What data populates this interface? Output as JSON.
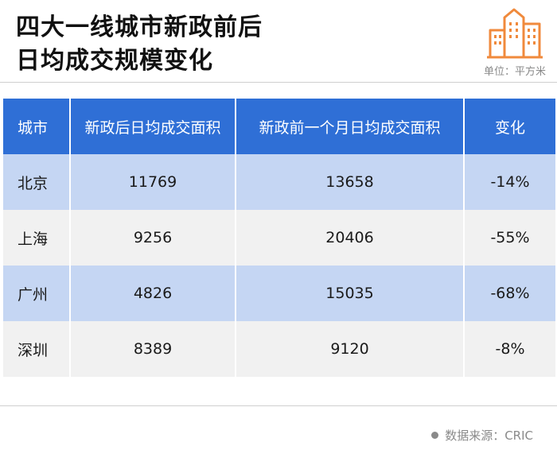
{
  "header": {
    "title_line1": "四大一线城市新政前后",
    "title_line2": "日均成交规模变化",
    "unit": "单位：平方米"
  },
  "table": {
    "columns": [
      "城市",
      "新政后日均成交面积",
      "新政前一个月日均成交面积",
      "变化"
    ],
    "rows": [
      {
        "city": "北京",
        "after": "11769",
        "before": "13658",
        "change": "-14%"
      },
      {
        "city": "上海",
        "after": "9256",
        "before": "20406",
        "change": "-55%"
      },
      {
        "city": "广州",
        "after": "4826",
        "before": "15035",
        "change": "-68%"
      },
      {
        "city": "深圳",
        "after": "8389",
        "before": "9120",
        "change": "-8%"
      }
    ]
  },
  "footer": {
    "source": "数据来源：CRIC"
  },
  "colors": {
    "header_blue": "#2f6fd6",
    "row_blue": "#c5d6f3",
    "row_gray": "#f1f1f1",
    "logo_orange": "#f08a3c"
  },
  "icons": {
    "logo": "buildings-icon"
  }
}
